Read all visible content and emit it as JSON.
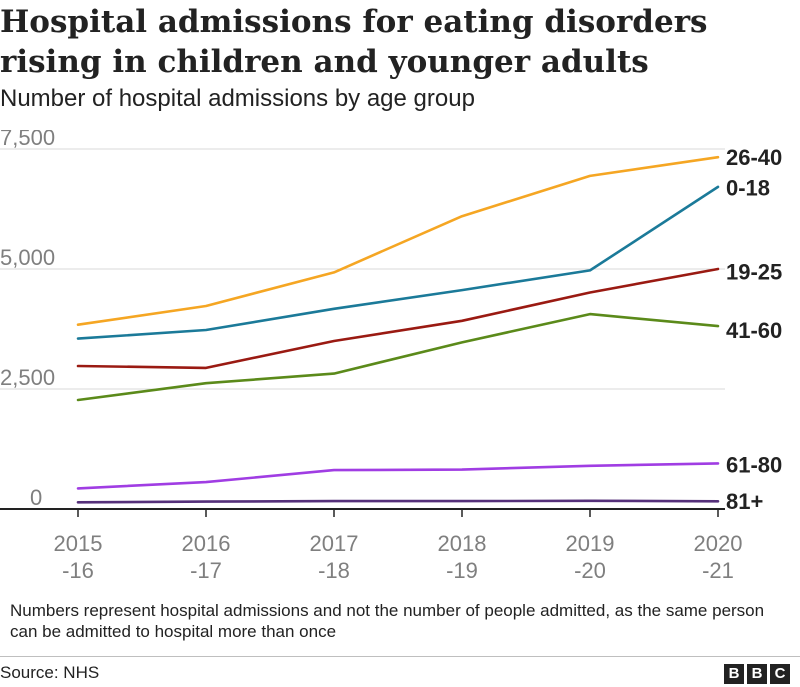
{
  "title": "Hospital admissions for eating disorders rising in children and younger adults",
  "subtitle": "Number of hospital admissions by age group",
  "note": "Numbers represent hospital admissions and not the number of people admitted, as the same person can be admitted to hospital more than once",
  "source": "Source: NHS",
  "logo": [
    "B",
    "B",
    "C"
  ],
  "chart_data": {
    "type": "line",
    "title": "Hospital admissions for eating disorders rising in children and younger adults",
    "subtitle": "Number of hospital admissions by age group",
    "xlabel": "",
    "ylabel": "",
    "categories": [
      [
        "2015",
        "-16"
      ],
      [
        "2016",
        "-17"
      ],
      [
        "2017",
        "-18"
      ],
      [
        "2018",
        "-19"
      ],
      [
        "2019",
        "-20"
      ],
      [
        "2020",
        "-21"
      ]
    ],
    "yticks": [
      {
        "value": 0,
        "label": "0"
      },
      {
        "value": 2500,
        "label": "2,500"
      },
      {
        "value": 5000,
        "label": "5,000"
      },
      {
        "value": 7500,
        "label": "7,500"
      }
    ],
    "ylim": [
      0,
      7500
    ],
    "grid": true,
    "series": [
      {
        "name": "26-40",
        "color": "#f5a623",
        "values": [
          3840,
          4230,
          4930,
          6100,
          6940,
          7330
        ]
      },
      {
        "name": "0-18",
        "color": "#1b7a99",
        "values": [
          3550,
          3730,
          4170,
          4560,
          4970,
          6710
        ]
      },
      {
        "name": "19-25",
        "color": "#9a1a12",
        "values": [
          2980,
          2940,
          3500,
          3920,
          4510,
          5000
        ]
      },
      {
        "name": "41-60",
        "color": "#5b8a1a",
        "values": [
          2270,
          2620,
          2820,
          3470,
          4060,
          3810
        ]
      },
      {
        "name": "61-80",
        "color": "#a03de3",
        "values": [
          430,
          560,
          810,
          820,
          900,
          950
        ]
      },
      {
        "name": "81+",
        "color": "#55307a",
        "values": [
          140,
          155,
          165,
          165,
          170,
          160
        ]
      }
    ],
    "series_labels": [
      {
        "name": "26-40",
        "value": 7330
      },
      {
        "name": "0-18",
        "value": 6700
      },
      {
        "name": "19-25",
        "value": 4950
      },
      {
        "name": "41-60",
        "value": 3730
      },
      {
        "name": "61-80",
        "value": 930
      },
      {
        "name": "81+",
        "value": 170
      }
    ]
  }
}
